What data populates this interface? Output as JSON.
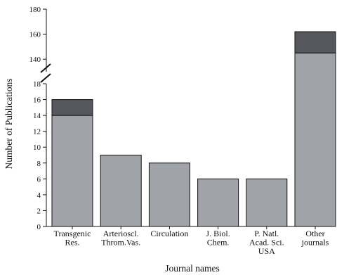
{
  "chart_data": {
    "type": "bar",
    "stacked": true,
    "broken_axis": true,
    "categories": [
      [
        "Transgenic",
        "Res."
      ],
      [
        "Arterioscl.",
        "Throm.Vas."
      ],
      [
        "Circulation"
      ],
      [
        "J. Biol.",
        "Chem."
      ],
      [
        "P. Natl.",
        "Acad. Sci.",
        "USA"
      ],
      [
        "Other",
        "journals"
      ]
    ],
    "series": [
      {
        "values": [
          14,
          9,
          8,
          6,
          6,
          145
        ],
        "color": "#a0a3a8"
      },
      {
        "values": [
          2,
          0,
          0,
          0,
          0,
          17
        ],
        "color": "#55575c"
      }
    ],
    "xlabel": "Journal names",
    "ylabel": "Number of Publications",
    "lower_axis": {
      "ylim": [
        0,
        18
      ],
      "ticks": [
        "0",
        "2",
        "4",
        "6",
        "8",
        "10",
        "12",
        "14",
        "16",
        "18"
      ]
    },
    "upper_axis": {
      "ylim": [
        130,
        180
      ],
      "ticks": [
        "140",
        "160",
        "180"
      ]
    },
    "grid": false,
    "legend": "none"
  }
}
